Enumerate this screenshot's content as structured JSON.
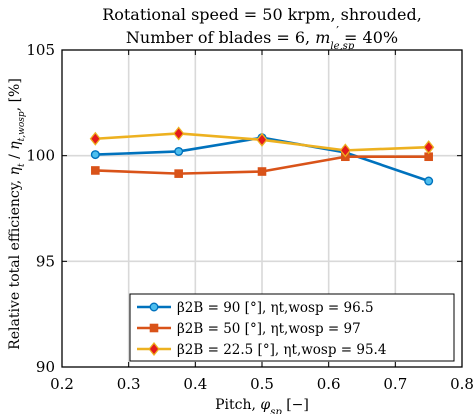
{
  "chart_data": {
    "type": "line",
    "title_lines": [
      "Rotational speed = 50 krpm, shrouded,",
      "Number of blades = 6, m′le,sp = 40%"
    ],
    "xlabel": "Pitch, φsp [−]",
    "ylabel": "Relative total efficiency, ηt / ηt,wosp [%]",
    "xlim": [
      0.2,
      0.8
    ],
    "ylim": [
      90,
      105
    ],
    "xticks": [
      0.2,
      0.3,
      0.4,
      0.5,
      0.6,
      0.7,
      0.8
    ],
    "yticks": [
      90,
      95,
      100,
      105
    ],
    "xtick_labels": [
      "0.2",
      "0.3",
      "0.4",
      "0.5",
      "0.6",
      "0.7",
      "0.8"
    ],
    "ytick_labels": [
      "90",
      "95",
      "100",
      "105"
    ],
    "grid": true,
    "legend_position": "bottom-right",
    "series": [
      {
        "name": "β2B = 90 [°], ηt,wosp = 96.5",
        "color": "#0072BD",
        "marker": "circle",
        "marker_fill": "#4DBEEE",
        "x": [
          0.25,
          0.375,
          0.5,
          0.625,
          0.75
        ],
        "y": [
          100.05,
          100.2,
          100.85,
          100.15,
          98.8
        ]
      },
      {
        "name": "β2B = 50 [°], ηt,wosp = 97",
        "color": "#D95319",
        "marker": "square",
        "marker_fill": "#D95319",
        "x": [
          0.25,
          0.375,
          0.5,
          0.625,
          0.75
        ],
        "y": [
          99.3,
          99.15,
          99.25,
          99.95,
          99.95
        ]
      },
      {
        "name": "β2B = 22.5 [°], ηt,wosp = 95.4",
        "color": "#EDB120",
        "marker": "diamond",
        "marker_fill": "#E41A1C",
        "x": [
          0.25,
          0.375,
          0.5,
          0.625,
          0.75
        ],
        "y": [
          100.8,
          101.05,
          100.75,
          100.25,
          100.4
        ]
      }
    ]
  }
}
